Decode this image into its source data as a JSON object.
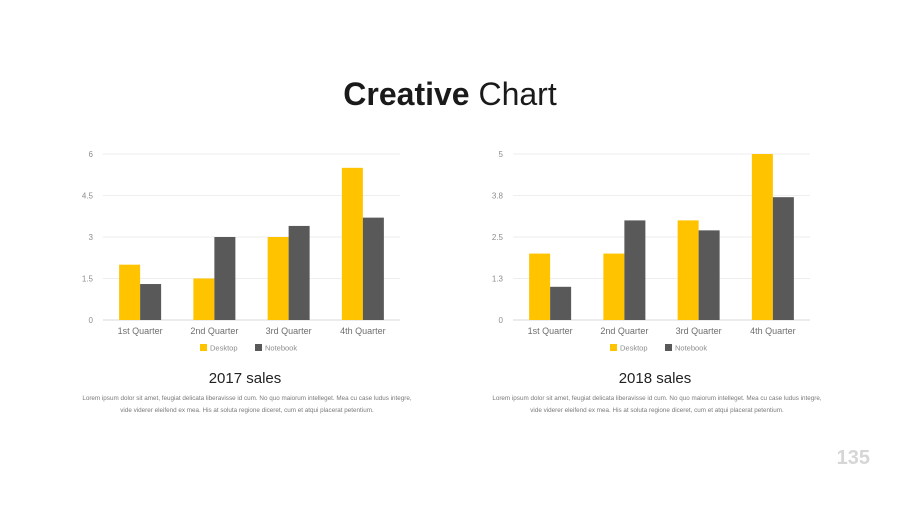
{
  "slide": {
    "title_bold": "Creative",
    "title_light": "Chart",
    "page_number": "135"
  },
  "charts": [
    {
      "subtitle": "2017 sales",
      "description": "Lorem ipsum dolor sit amet, feugiat delicata liberavisse id cum. No quo maiorum intelleget. Mea cu case ludus integre, vide viderer eleifend ex mea. His at soluta regione diceret, cum et atqui placerat petentium."
    },
    {
      "subtitle": "2018 sales",
      "description": "Lorem ipsum dolor sit amet, feugiat delicata liberavisse id cum. No quo maiorum intelleget. Mea cu case ludus integre, vide viderer eleifend ex mea. His at soluta regione diceret, cum et atqui placerat petentium."
    }
  ],
  "colors": {
    "desktop": "#FFC300",
    "notebook": "#595959",
    "grid": "#eeeeee",
    "axis": "#d9d9d9",
    "tick_text": "#8c8c8c"
  },
  "chart_data": [
    {
      "type": "bar",
      "categories": [
        "1st Quarter",
        "2nd Quarter",
        "3rd Quarter",
        "4th Quarter"
      ],
      "series": [
        {
          "name": "Desktop",
          "values": [
            2.0,
            1.5,
            3.0,
            5.5
          ]
        },
        {
          "name": "Notebook",
          "values": [
            1.3,
            3.0,
            3.4,
            3.7
          ]
        }
      ],
      "yticks": [
        "0",
        "1.5",
        "3",
        "4.5",
        "6"
      ],
      "ylim": [
        0,
        6
      ],
      "grid": true,
      "legend": "bottom"
    },
    {
      "type": "bar",
      "categories": [
        "1st Quarter",
        "2nd Quarter",
        "3rd Quarter",
        "4th Quarter"
      ],
      "series": [
        {
          "name": "Desktop",
          "values": [
            2.0,
            2.0,
            3.0,
            5.0
          ]
        },
        {
          "name": "Notebook",
          "values": [
            1.0,
            3.0,
            2.7,
            3.7
          ]
        }
      ],
      "yticks": [
        "0",
        "1.3",
        "2.5",
        "3.8",
        "5"
      ],
      "ylim": [
        0,
        5
      ],
      "grid": true,
      "legend": "bottom"
    }
  ]
}
